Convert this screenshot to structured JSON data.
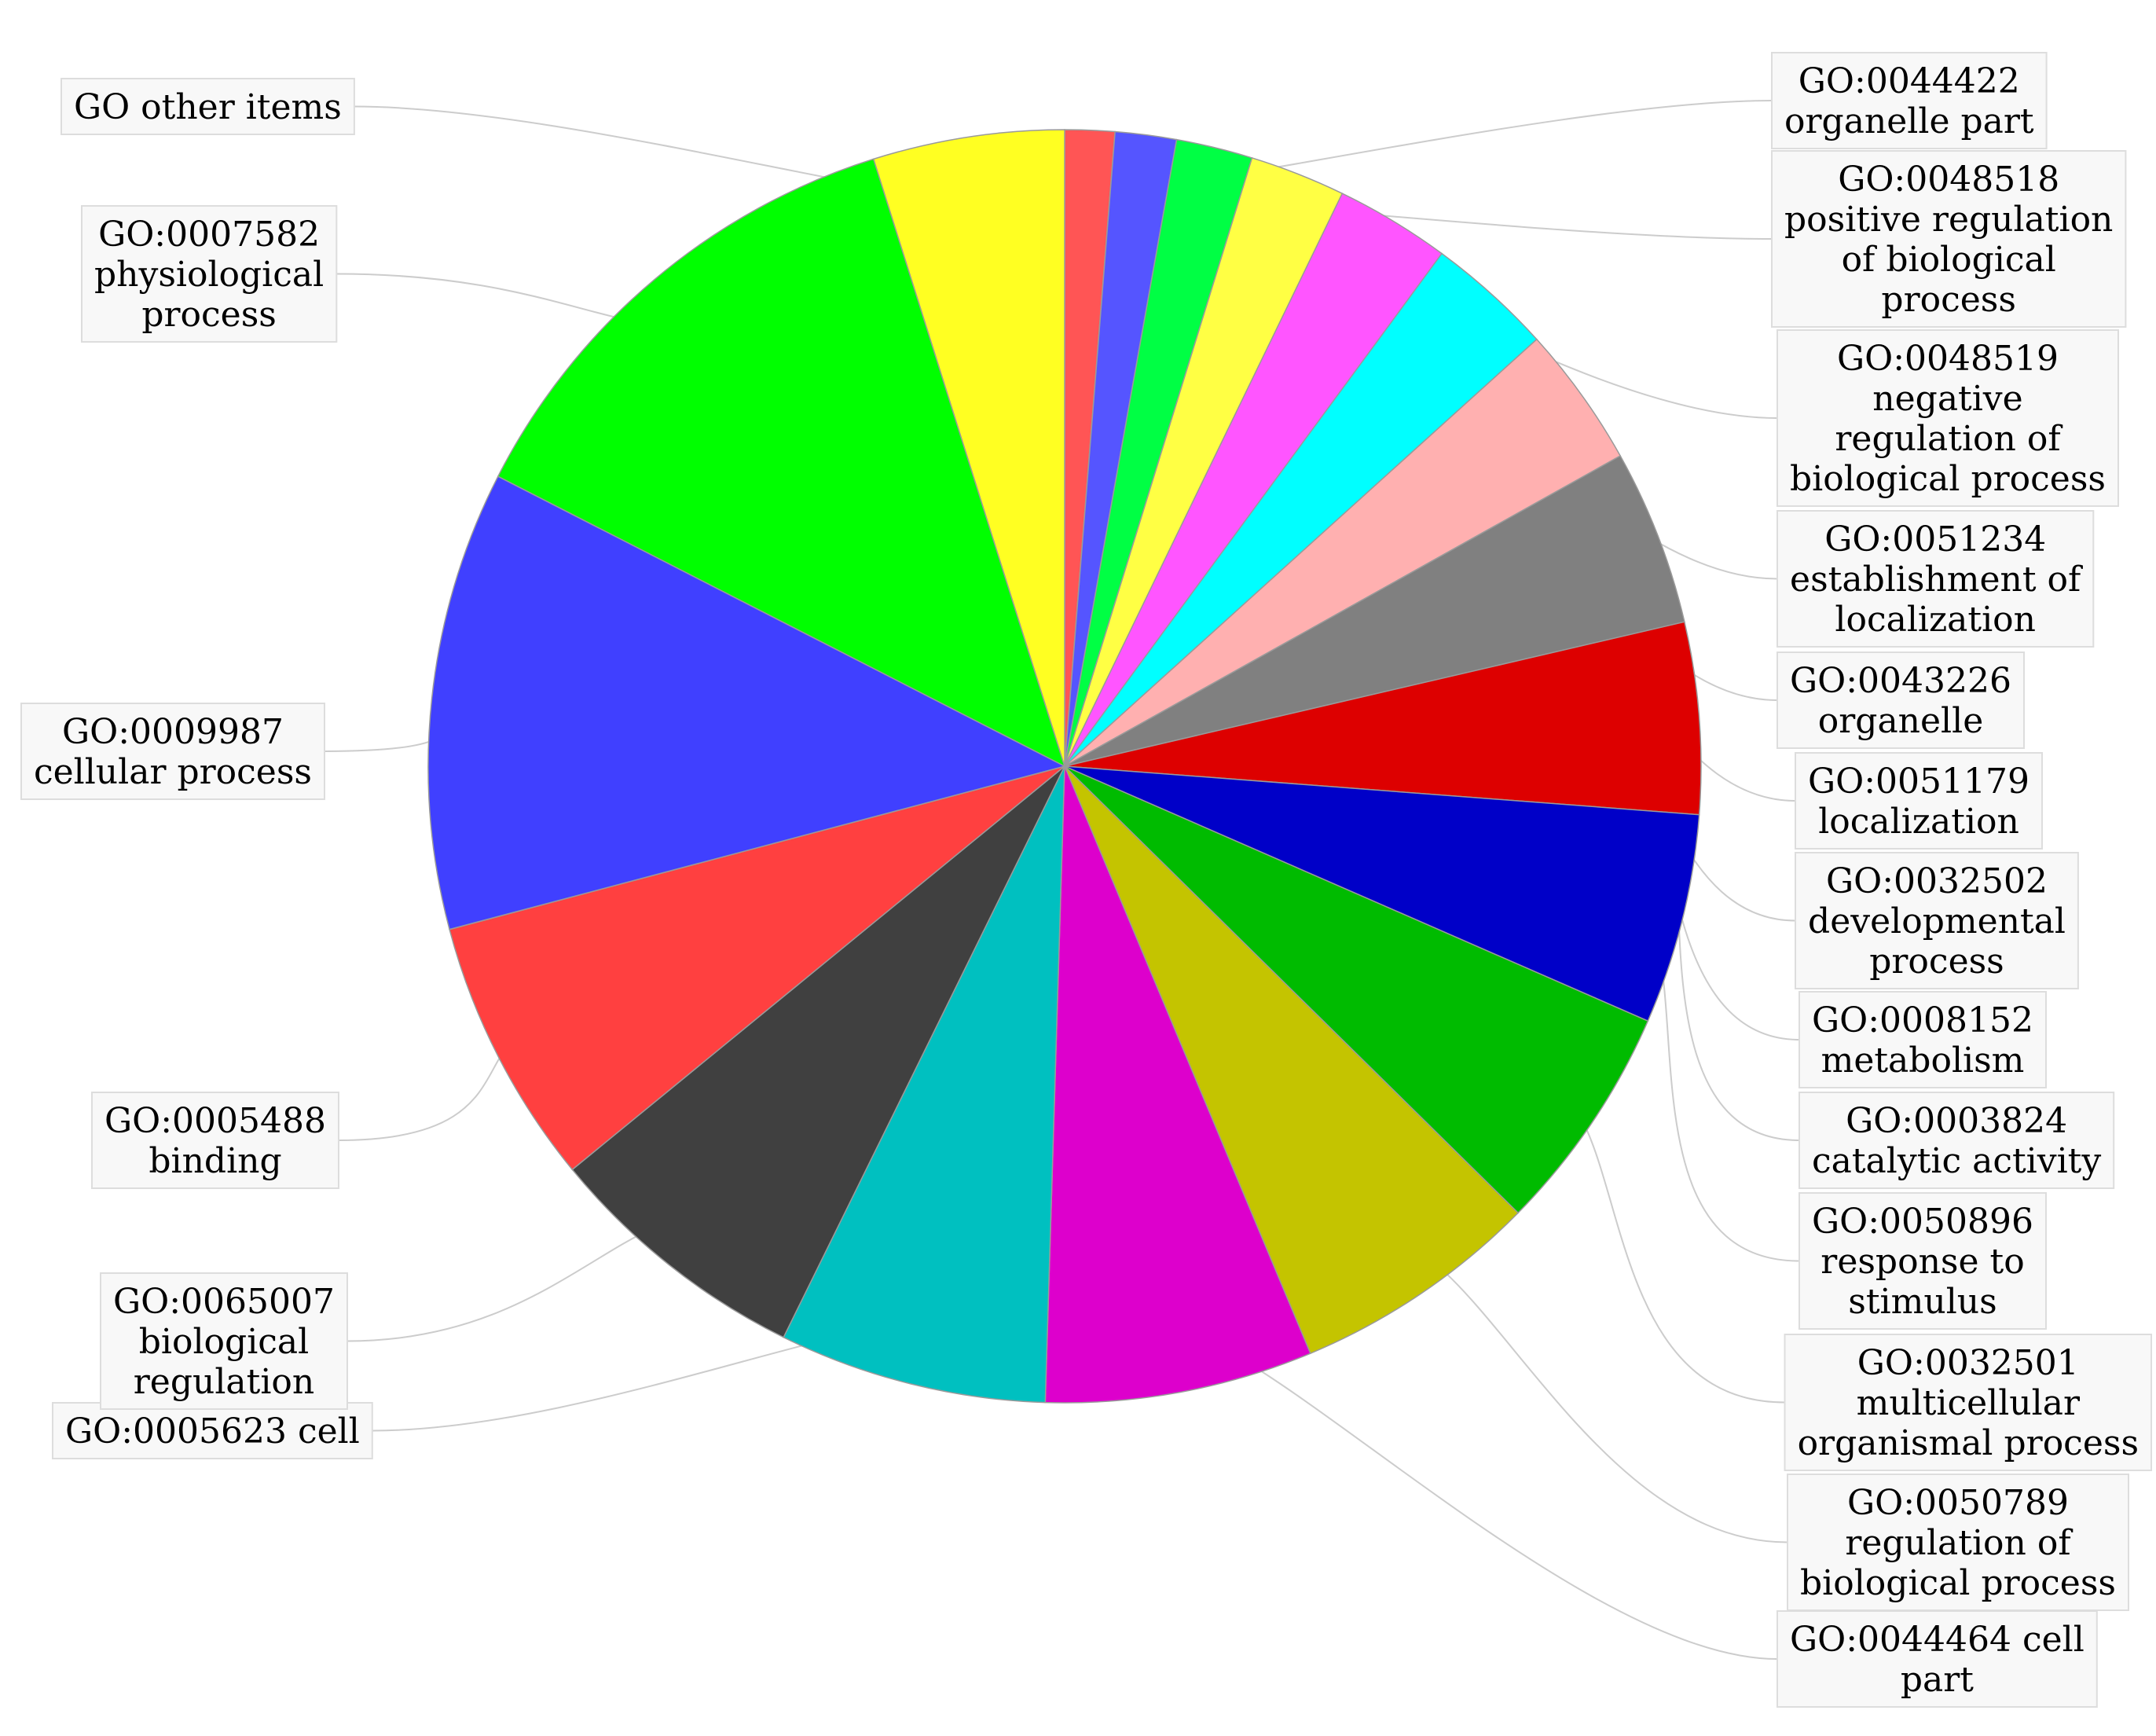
{
  "chart_data": {
    "type": "pie",
    "title": "",
    "start_angle_deg": 0,
    "direction": "clockwise",
    "slices": [
      {
        "label": "GO:0044422 organelle part",
        "value": 1.3,
        "color": "#ff5555"
      },
      {
        "label": "GO:0048518 positive regulation of biological process",
        "value": 1.6,
        "color": "#5555ff"
      },
      {
        "label": "GO:0048519 negative regulation of biological process",
        "value": 2.0,
        "color": "#00ff44"
      },
      {
        "label": "GO:0051234 establishment of localization",
        "value": 2.5,
        "color": "#ffff44"
      },
      {
        "label": "GO:0043226 organelle",
        "value": 3.0,
        "color": "#ff55ff"
      },
      {
        "label": "GO:0051179 localization",
        "value": 3.3,
        "color": "#00ffff"
      },
      {
        "label": "GO:0032502 developmental process",
        "value": 3.7,
        "color": "#ffb0b0"
      },
      {
        "label": "GO:0008152 metabolism",
        "value": 4.6,
        "color": "#808080"
      },
      {
        "label": "GO:0003824 catalytic activity",
        "value": 5.0,
        "color": "#dd0000"
      },
      {
        "label": "GO:0050896 response to stimulus",
        "value": 5.5,
        "color": "#0000c8"
      },
      {
        "label": "GO:0032501 multicellular organismal process",
        "value": 6.0,
        "color": "#00bb00"
      },
      {
        "label": "GO:0050789 regulation of biological process",
        "value": 6.5,
        "color": "#c4c400"
      },
      {
        "label": "GO:0044464 cell part",
        "value": 7.0,
        "color": "#dd00cc"
      },
      {
        "label": "GO:0005623 cell",
        "value": 7.0,
        "color": "#00c0c0"
      },
      {
        "label": "GO:0065007 biological regulation",
        "value": 7.0,
        "color": "#404040"
      },
      {
        "label": "GO:0005488 binding",
        "value": 7.0,
        "color": "#ff4040"
      },
      {
        "label": "GO:0009987 cellular process",
        "value": 12.0,
        "color": "#4040ff"
      },
      {
        "label": "GO:0007582 physiological process",
        "value": 13.0,
        "color": "#00ff00"
      },
      {
        "label": "GO other items",
        "value": 5.0,
        "color": "#ffff22"
      }
    ],
    "labels": [
      {
        "slice": 0,
        "lines": [
          "GO:0044422",
          "organelle part"
        ]
      },
      {
        "slice": 1,
        "lines": [
          "GO:0048518",
          "positive regulation",
          "of biological",
          "process"
        ]
      },
      {
        "slice": 2,
        "lines": [
          "GO:0048519",
          "negative",
          "regulation of",
          "biological process"
        ]
      },
      {
        "slice": 3,
        "lines": [
          "GO:0051234",
          "establishment of",
          "localization"
        ]
      },
      {
        "slice": 4,
        "lines": [
          "GO:0043226",
          "organelle"
        ]
      },
      {
        "slice": 5,
        "lines": [
          "GO:0051179",
          "localization"
        ]
      },
      {
        "slice": 6,
        "lines": [
          "GO:0032502",
          "developmental",
          "process"
        ]
      },
      {
        "slice": 7,
        "lines": [
          "GO:0008152",
          "metabolism"
        ]
      },
      {
        "slice": 8,
        "lines": [
          "GO:0003824",
          "catalytic activity"
        ]
      },
      {
        "slice": 9,
        "lines": [
          "GO:0050896",
          "response to",
          "stimulus"
        ]
      },
      {
        "slice": 10,
        "lines": [
          "GO:0032501",
          "multicellular",
          "organismal process"
        ]
      },
      {
        "slice": 11,
        "lines": [
          "GO:0050789",
          "regulation of",
          "biological process"
        ]
      },
      {
        "slice": 12,
        "lines": [
          "GO:0044464 cell",
          "part"
        ]
      },
      {
        "slice": 13,
        "lines": [
          "GO:0005623 cell"
        ]
      },
      {
        "slice": 14,
        "lines": [
          "GO:0065007",
          "biological",
          "regulation"
        ]
      },
      {
        "slice": 15,
        "lines": [
          "GO:0005488",
          "binding"
        ]
      },
      {
        "slice": 16,
        "lines": [
          "GO:0009987",
          "cellular process"
        ]
      },
      {
        "slice": 17,
        "lines": [
          "GO:0007582",
          "physiological",
          "process"
        ]
      },
      {
        "slice": 18,
        "lines": [
          "GO other items"
        ]
      }
    ]
  }
}
